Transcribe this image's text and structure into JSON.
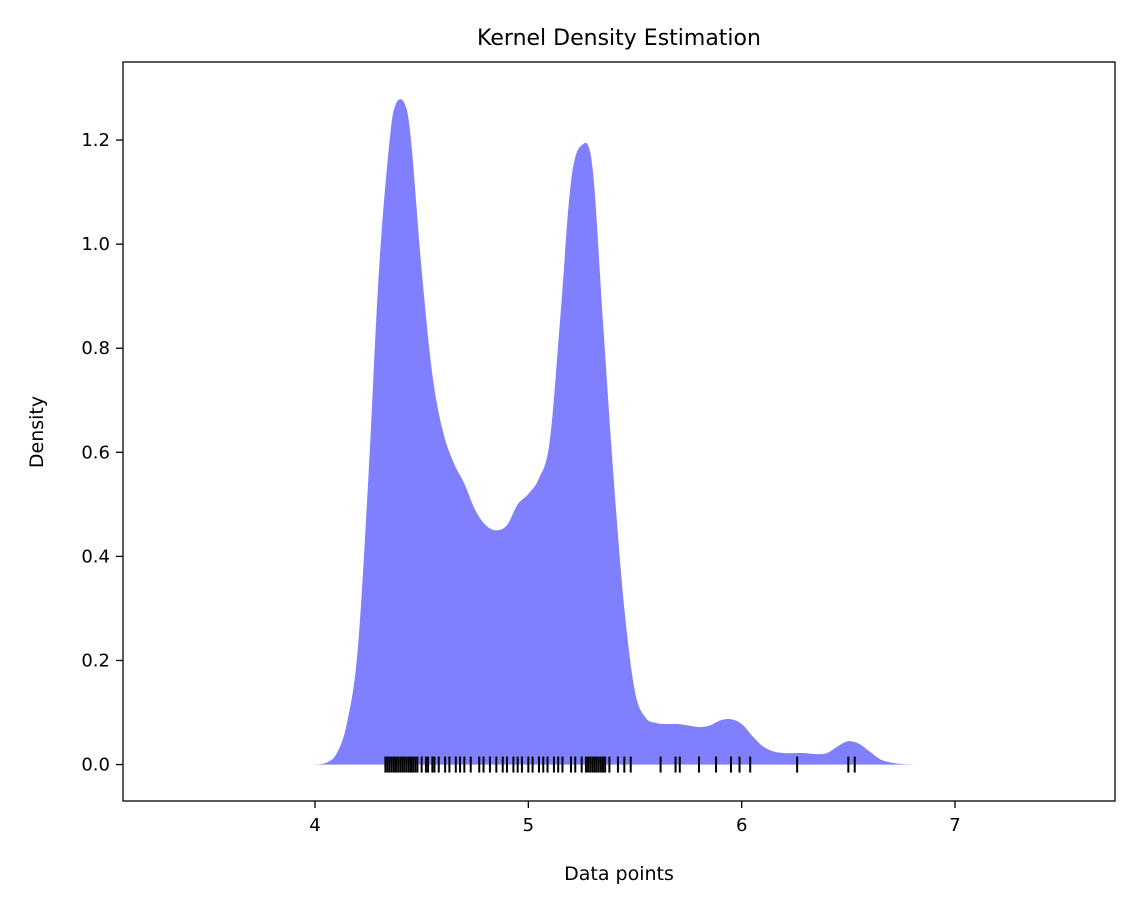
{
  "chart_data": {
    "type": "area",
    "title": "Kernel Density Estimation",
    "xlabel": "Data points",
    "ylabel": "Density",
    "xlim": [
      3.1,
      7.75
    ],
    "ylim": [
      -0.07,
      1.35
    ],
    "xticks": [
      4,
      5,
      6,
      7
    ],
    "xtick_labels": [
      "4",
      "5",
      "6",
      "7"
    ],
    "yticks": [
      0.0,
      0.2,
      0.4,
      0.6,
      0.8,
      1.0,
      1.2
    ],
    "ytick_labels": [
      "0.0",
      "0.2",
      "0.4",
      "0.6",
      "0.8",
      "1.0",
      "1.2"
    ],
    "grid": false,
    "fill_color": "#8080ff",
    "rug_color": "#000000",
    "density": {
      "x": [
        4.0,
        4.05,
        4.1,
        4.15,
        4.2,
        4.25,
        4.3,
        4.35,
        4.38,
        4.42,
        4.45,
        4.5,
        4.55,
        4.6,
        4.65,
        4.7,
        4.75,
        4.8,
        4.85,
        4.9,
        4.95,
        5.0,
        5.05,
        5.1,
        5.15,
        5.2,
        5.25,
        5.3,
        5.35,
        5.4,
        5.45,
        5.5,
        5.55,
        5.6,
        5.65,
        5.7,
        5.75,
        5.8,
        5.85,
        5.9,
        5.95,
        6.0,
        6.05,
        6.1,
        6.15,
        6.2,
        6.25,
        6.3,
        6.35,
        6.4,
        6.45,
        6.5,
        6.55,
        6.6,
        6.65,
        6.7,
        6.75,
        6.8
      ],
      "y": [
        0.0,
        0.003,
        0.02,
        0.08,
        0.22,
        0.55,
        0.95,
        1.2,
        1.27,
        1.27,
        1.2,
        0.95,
        0.75,
        0.64,
        0.58,
        0.54,
        0.49,
        0.46,
        0.45,
        0.46,
        0.5,
        0.52,
        0.55,
        0.62,
        0.86,
        1.12,
        1.19,
        1.15,
        0.85,
        0.55,
        0.3,
        0.14,
        0.09,
        0.08,
        0.078,
        0.078,
        0.075,
        0.072,
        0.075,
        0.085,
        0.087,
        0.078,
        0.055,
        0.035,
        0.025,
        0.022,
        0.022,
        0.022,
        0.02,
        0.022,
        0.035,
        0.045,
        0.04,
        0.025,
        0.01,
        0.004,
        0.001,
        0.0
      ]
    },
    "rug": [
      4.33,
      4.34,
      4.35,
      4.36,
      4.37,
      4.38,
      4.39,
      4.4,
      4.41,
      4.42,
      4.43,
      4.44,
      4.45,
      4.46,
      4.47,
      4.48,
      4.5,
      4.52,
      4.53,
      4.55,
      4.56,
      4.58,
      4.61,
      4.63,
      4.66,
      4.68,
      4.7,
      4.73,
      4.77,
      4.79,
      4.82,
      4.85,
      4.88,
      4.9,
      4.93,
      4.95,
      4.97,
      5.0,
      5.02,
      5.05,
      5.07,
      5.09,
      5.12,
      5.14,
      5.16,
      5.2,
      5.22,
      5.25,
      5.27,
      5.28,
      5.29,
      5.3,
      5.31,
      5.32,
      5.33,
      5.34,
      5.35,
      5.36,
      5.38,
      5.42,
      5.45,
      5.48,
      5.62,
      5.69,
      5.71,
      5.8,
      5.88,
      5.95,
      5.99,
      6.04,
      6.26,
      6.5,
      6.53
    ]
  }
}
